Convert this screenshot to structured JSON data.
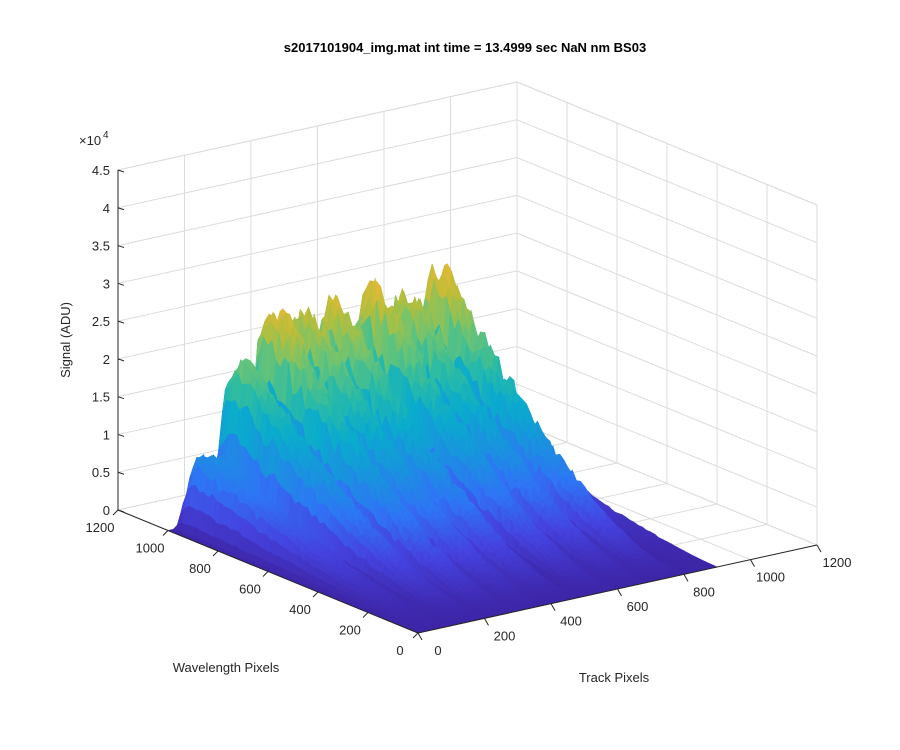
{
  "chart_data": {
    "type": "surface",
    "title": "s2017101904_img.mat int time = 13.4999 sec  NaN nm BS03",
    "xlabel": "Track Pixels",
    "ylabel": "Wavelength Pixels",
    "zlabel": "Signal (ADU)",
    "z_exponent_label": "×10",
    "z_exponent_power": "4",
    "xlim": [
      0,
      1200
    ],
    "ylim": [
      0,
      1200
    ],
    "zlim": [
      0,
      45000
    ],
    "x_ticks": [
      "0",
      "200",
      "400",
      "600",
      "800",
      "1000",
      "1200"
    ],
    "y_ticks": [
      "0",
      "200",
      "400",
      "600",
      "800",
      "1000",
      "1200"
    ],
    "z_ticks": [
      "0",
      "0.5",
      "1",
      "1.5",
      "2",
      "2.5",
      "3",
      "3.5",
      "4",
      "4.5"
    ],
    "grid": true,
    "colormap": "parula",
    "colormap_stops": [
      "#3e26a8",
      "#4543e0",
      "#2f74f5",
      "#1993de",
      "#0aabcd",
      "#2bbba5",
      "#6dc472",
      "#b6be3b",
      "#f1b734",
      "#f8d92c",
      "#f9fb15"
    ],
    "track_peaks": [
      {
        "track_center": 70,
        "peak": 13000
      },
      {
        "track_center": 170,
        "peak": 27000
      },
      {
        "track_center": 265,
        "peak": 34500
      },
      {
        "track_center": 355,
        "peak": 33000
      },
      {
        "track_center": 445,
        "peak": 33500
      },
      {
        "track_center": 560,
        "peak": 34500
      },
      {
        "track_center": 660,
        "peak": 32500
      },
      {
        "track_center": 760,
        "peak": 35000
      },
      {
        "track_center": 880,
        "peak": 9000
      }
    ]
  }
}
